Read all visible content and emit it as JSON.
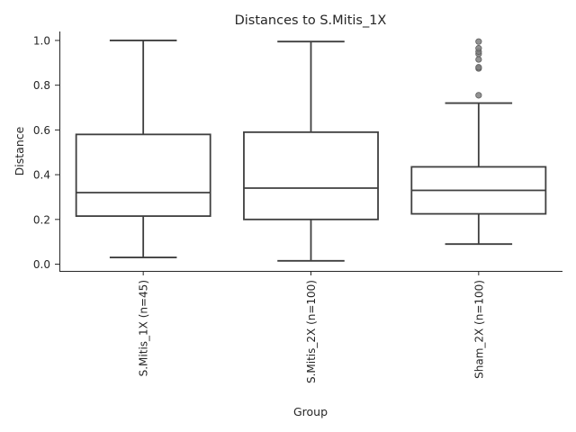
{
  "chart_data": {
    "type": "box",
    "title": "Distances to S.Mitis_1X",
    "xlabel": "Group",
    "ylabel": "Distance",
    "ylim": [
      -0.03,
      1.04
    ],
    "yticks": [
      "0.0",
      "0.2",
      "0.4",
      "0.6",
      "0.8",
      "1.0"
    ],
    "grid": false,
    "categories": [
      "S.Mitis_1X (n=45)",
      "S.Mitis_2X (n=100)",
      "Sham_2X (n=100)"
    ],
    "boxes": [
      {
        "category": "S.Mitis_1X (n=45)",
        "whisker_low": 0.03,
        "q1": 0.215,
        "median": 0.32,
        "q3": 0.58,
        "whisker_high": 1.0,
        "outliers": []
      },
      {
        "category": "S.Mitis_2X (n=100)",
        "whisker_low": 0.015,
        "q1": 0.2,
        "median": 0.34,
        "q3": 0.59,
        "whisker_high": 0.995,
        "outliers": []
      },
      {
        "category": "Sham_2X (n=100)",
        "whisker_low": 0.09,
        "q1": 0.225,
        "median": 0.33,
        "q3": 0.435,
        "whisker_high": 0.72,
        "outliers": [
          0.755,
          0.875,
          0.88,
          0.915,
          0.94,
          0.95,
          0.965,
          0.995
        ]
      }
    ],
    "colors": {
      "line": "#3f3f3f",
      "box_fill": "#ffffff",
      "flier": "#7f7f7f"
    }
  }
}
